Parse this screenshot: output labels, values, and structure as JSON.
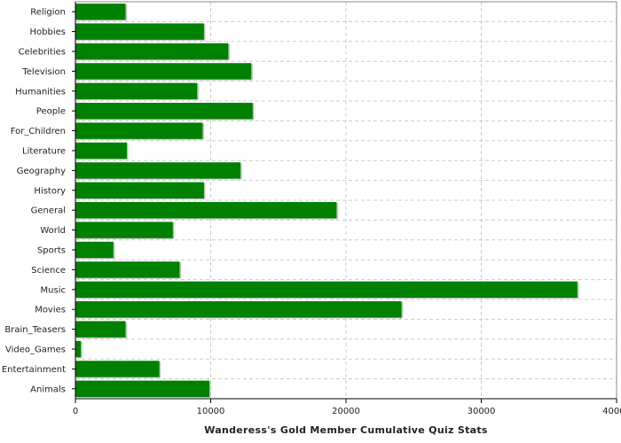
{
  "chart_data": {
    "type": "bar",
    "orientation": "horizontal",
    "title": "",
    "xlabel": "Wanderess's Gold Member Cumulative Quiz Stats",
    "ylabel": "",
    "xlim": [
      0,
      40000
    ],
    "xticks": [
      "0",
      "10000",
      "20000",
      "30000",
      "40000"
    ],
    "grid": true,
    "bar_color": "#008000",
    "categories": [
      "Religion",
      "Hobbies",
      "Celebrities",
      "Television",
      "Humanities",
      "People",
      "For_Children",
      "Literature",
      "Geography",
      "History",
      "General",
      "World",
      "Sports",
      "Science",
      "Music",
      "Movies",
      "Brain_Teasers",
      "Video_Games",
      "Entertainment",
      "Animals"
    ],
    "values": [
      3700,
      9500,
      11300,
      13000,
      9000,
      13100,
      9400,
      3800,
      12200,
      9500,
      19300,
      7200,
      2800,
      7700,
      37100,
      24100,
      3700,
      400,
      6200,
      9900
    ]
  }
}
